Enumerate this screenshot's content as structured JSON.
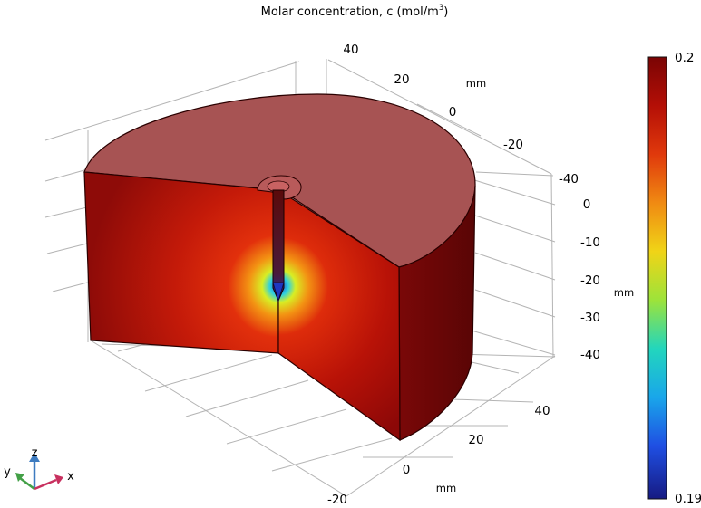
{
  "chart_data": {
    "type": "heatmap",
    "title_prefix": "Molar concentration, c (mol/m",
    "title_sup": "3",
    "title_suffix": ")",
    "x_axis": {
      "unit": "mm",
      "ticks": [
        "40",
        "20",
        "0",
        "-20"
      ]
    },
    "y_axis": {
      "unit": "mm",
      "ticks": [
        "40",
        "20",
        "0",
        "-20",
        "-40"
      ]
    },
    "z_axis": {
      "unit": "mm",
      "ticks": [
        "0",
        "-10",
        "-20",
        "-30",
        "-40"
      ]
    },
    "colorbar": {
      "max_label": "0.2",
      "min_label": "0.19",
      "colormap": "rainbow",
      "colors": [
        "#7a0404",
        "#b40f06",
        "#e0390c",
        "#f08a12",
        "#f0d417",
        "#9de33a",
        "#22d6bd",
        "#19a6ea",
        "#1f4fe3",
        "#161a82"
      ]
    },
    "triad": {
      "x": "x",
      "y": "y",
      "z": "z",
      "colors": {
        "x": "#c8305f",
        "y": "#43a047",
        "z": "#3d7bc0"
      }
    }
  }
}
